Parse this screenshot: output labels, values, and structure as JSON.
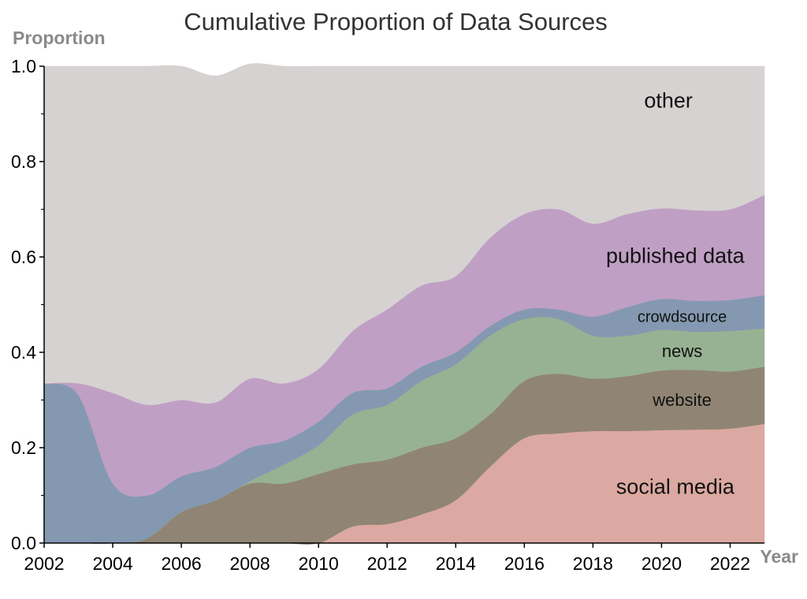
{
  "chart_data": {
    "type": "area",
    "stacked": true,
    "normalized": true,
    "title": "Cumulative Proportion of Data Sources",
    "xlabel": "Year",
    "ylabel": "Proportion",
    "xlim": [
      2002,
      2023
    ],
    "ylim": [
      0,
      1
    ],
    "x_ticks": [
      2002,
      2004,
      2006,
      2008,
      2010,
      2012,
      2014,
      2016,
      2018,
      2020,
      2022
    ],
    "y_ticks": [
      "0.0",
      "0.2",
      "0.4",
      "0.6",
      "0.8",
      "1.0"
    ],
    "grid": false,
    "legend": "none",
    "x": [
      2002,
      2003,
      2004,
      2005,
      2006,
      2007,
      2008,
      2009,
      2010,
      2011,
      2012,
      2013,
      2014,
      2015,
      2016,
      2017,
      2018,
      2019,
      2020,
      2021,
      2022,
      2023
    ],
    "series": [
      {
        "name": "social media",
        "color": "#dba9a1",
        "values": [
          0,
          0,
          0,
          0,
          0,
          0,
          0,
          0,
          0,
          0.035,
          0.04,
          0.06,
          0.09,
          0.16,
          0.22,
          0.23,
          0.235,
          0.235,
          0.237,
          0.238,
          0.24,
          0.25
        ]
      },
      {
        "name": "website",
        "color": "#908574",
        "values": [
          0,
          0,
          0,
          0.01,
          0.065,
          0.09,
          0.125,
          0.125,
          0.145,
          0.13,
          0.135,
          0.14,
          0.13,
          0.11,
          0.12,
          0.125,
          0.11,
          0.115,
          0.125,
          0.125,
          0.12,
          0.12
        ]
      },
      {
        "name": "news",
        "color": "#97b292",
        "values": [
          0,
          0,
          0,
          0,
          0,
          0,
          0.005,
          0.04,
          0.06,
          0.105,
          0.115,
          0.14,
          0.155,
          0.165,
          0.13,
          0.115,
          0.09,
          0.085,
          0.085,
          0.08,
          0.085,
          0.08
        ]
      },
      {
        "name": "crowdsource",
        "color": "#8499b1",
        "values": [
          0.335,
          0.31,
          0.125,
          0.09,
          0.075,
          0.07,
          0.07,
          0.05,
          0.05,
          0.045,
          0.035,
          0.03,
          0.025,
          0.02,
          0.02,
          0.02,
          0.04,
          0.06,
          0.065,
          0.065,
          0.065,
          0.07
        ]
      },
      {
        "name": "published data",
        "color": "#c09fc5",
        "values": [
          0,
          0.025,
          0.19,
          0.19,
          0.16,
          0.135,
          0.145,
          0.12,
          0.11,
          0.13,
          0.165,
          0.17,
          0.16,
          0.185,
          0.2,
          0.21,
          0.195,
          0.195,
          0.19,
          0.19,
          0.19,
          0.21
        ]
      },
      {
        "name": "other",
        "color": "#d5d2d1",
        "values": [
          0.665,
          0.665,
          0.685,
          0.71,
          0.7,
          0.685,
          0.66,
          0.665,
          0.635,
          0.555,
          0.51,
          0.46,
          0.44,
          0.36,
          0.31,
          0.3,
          0.33,
          0.31,
          0.298,
          0.302,
          0.3,
          0.27
        ]
      }
    ]
  }
}
